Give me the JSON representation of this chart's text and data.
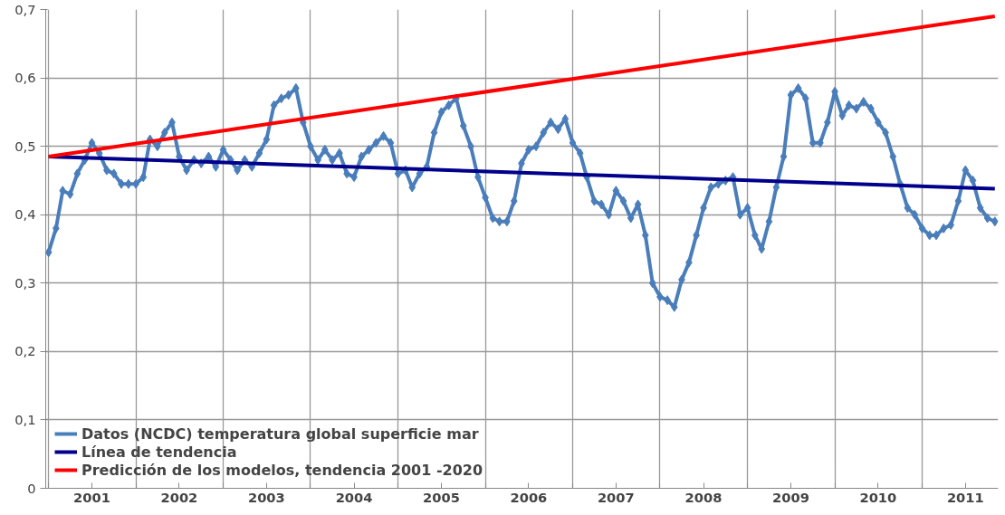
{
  "chart_data": {
    "type": "line",
    "x": [
      "2001-01",
      "2001-02",
      "2001-03",
      "2001-04",
      "2001-05",
      "2001-06",
      "2001-07",
      "2001-08",
      "2001-09",
      "2001-10",
      "2001-11",
      "2001-12",
      "2002-01",
      "2002-02",
      "2002-03",
      "2002-04",
      "2002-05",
      "2002-06",
      "2002-07",
      "2002-08",
      "2002-09",
      "2002-10",
      "2002-11",
      "2002-12",
      "2003-01",
      "2003-02",
      "2003-03",
      "2003-04",
      "2003-05",
      "2003-06",
      "2003-07",
      "2003-08",
      "2003-09",
      "2003-10",
      "2003-11",
      "2003-12",
      "2004-01",
      "2004-02",
      "2004-03",
      "2004-04",
      "2004-05",
      "2004-06",
      "2004-07",
      "2004-08",
      "2004-09",
      "2004-10",
      "2004-11",
      "2004-12",
      "2005-01",
      "2005-02",
      "2005-03",
      "2005-04",
      "2005-05",
      "2005-06",
      "2005-07",
      "2005-08",
      "2005-09",
      "2005-10",
      "2005-11",
      "2005-12",
      "2006-01",
      "2006-02",
      "2006-03",
      "2006-04",
      "2006-05",
      "2006-06",
      "2006-07",
      "2006-08",
      "2006-09",
      "2006-10",
      "2006-11",
      "2006-12",
      "2007-01",
      "2007-02",
      "2007-03",
      "2007-04",
      "2007-05",
      "2007-06",
      "2007-07",
      "2007-08",
      "2007-09",
      "2007-10",
      "2007-11",
      "2007-12",
      "2008-01",
      "2008-02",
      "2008-03",
      "2008-04",
      "2008-05",
      "2008-06",
      "2008-07",
      "2008-08",
      "2008-09",
      "2008-10",
      "2008-11",
      "2008-12",
      "2009-01",
      "2009-02",
      "2009-03",
      "2009-04",
      "2009-05",
      "2009-06",
      "2009-07",
      "2009-08",
      "2009-09",
      "2009-10",
      "2009-11",
      "2009-12",
      "2010-01",
      "2010-02",
      "2010-03",
      "2010-04",
      "2010-05",
      "2010-06",
      "2010-07",
      "2010-08",
      "2010-09",
      "2010-10",
      "2010-11",
      "2010-12",
      "2011-01",
      "2011-02",
      "2011-03",
      "2011-04",
      "2011-05",
      "2011-06",
      "2011-07",
      "2011-08",
      "2011-09",
      "2011-10",
      "2011-11"
    ],
    "series": [
      {
        "name": "Datos (NCDC) temperatura global superficie mar",
        "color": "#4a7ebb",
        "marker": "diamond",
        "values": [
          0.345,
          0.38,
          0.435,
          0.43,
          0.46,
          0.48,
          0.505,
          0.49,
          0.465,
          0.46,
          0.445,
          0.445,
          0.445,
          0.455,
          0.51,
          0.5,
          0.52,
          0.535,
          0.485,
          0.465,
          0.48,
          0.475,
          0.485,
          0.47,
          0.495,
          0.48,
          0.465,
          0.48,
          0.47,
          0.49,
          0.51,
          0.56,
          0.57,
          0.575,
          0.585,
          0.535,
          0.5,
          0.48,
          0.495,
          0.48,
          0.49,
          0.46,
          0.455,
          0.485,
          0.495,
          0.505,
          0.515,
          0.505,
          0.46,
          0.465,
          0.44,
          0.46,
          0.47,
          0.52,
          0.55,
          0.56,
          0.57,
          0.53,
          0.5,
          0.455,
          0.425,
          0.395,
          0.39,
          0.39,
          0.42,
          0.475,
          0.495,
          0.5,
          0.52,
          0.535,
          0.525,
          0.54,
          0.505,
          0.49,
          0.455,
          0.42,
          0.415,
          0.4,
          0.435,
          0.42,
          0.395,
          0.415,
          0.37,
          0.3,
          0.28,
          0.275,
          0.265,
          0.305,
          0.33,
          0.37,
          0.41,
          0.44,
          0.445,
          0.45,
          0.455,
          0.4,
          0.41,
          0.37,
          0.35,
          0.39,
          0.44,
          0.485,
          0.575,
          0.585,
          0.57,
          0.505,
          0.505,
          0.535,
          0.58,
          0.545,
          0.56,
          0.555,
          0.565,
          0.555,
          0.535,
          0.52,
          0.485,
          0.445,
          0.41,
          0.4,
          0.38,
          0.37,
          0.37,
          0.38,
          0.385,
          0.42,
          0.465,
          0.45,
          0.41,
          0.395,
          0.39
        ]
      },
      {
        "name": "Línea de tendencia",
        "color": "#00008b",
        "marker": "none",
        "x": [
          "2001-01",
          "2011-11"
        ],
        "values": [
          0.485,
          0.438
        ]
      },
      {
        "name": "Predicción de los modelos, tendencia 2001 -2020",
        "color": "#ff0000",
        "marker": "none",
        "x": [
          "2001-01",
          "2011-11"
        ],
        "values": [
          0.485,
          0.69
        ]
      }
    ],
    "xlim": [
      "2000-12-20",
      "2011-11-15"
    ],
    "xticks": [
      {
        "value": "2001-01",
        "label": null
      },
      {
        "value": "2001-07",
        "label": "2001"
      },
      {
        "value": "2002-01",
        "label": null
      },
      {
        "value": "2002-07",
        "label": "2002"
      },
      {
        "value": "2003-01",
        "label": null
      },
      {
        "value": "2003-07",
        "label": "2003"
      },
      {
        "value": "2004-01",
        "label": null
      },
      {
        "value": "2004-07",
        "label": "2004"
      },
      {
        "value": "2005-01",
        "label": null
      },
      {
        "value": "2005-07",
        "label": "2005"
      },
      {
        "value": "2006-01",
        "label": null
      },
      {
        "value": "2006-07",
        "label": "2006"
      },
      {
        "value": "2007-01",
        "label": null
      },
      {
        "value": "2007-07",
        "label": "2007"
      },
      {
        "value": "2008-01",
        "label": null
      },
      {
        "value": "2008-07",
        "label": "2008"
      },
      {
        "value": "2009-01",
        "label": null
      },
      {
        "value": "2009-07",
        "label": "2009"
      },
      {
        "value": "2010-01",
        "label": null
      },
      {
        "value": "2010-07",
        "label": "2010"
      },
      {
        "value": "2011-01",
        "label": null
      },
      {
        "value": "2011-07",
        "label": "2011"
      }
    ],
    "ylim": [
      0,
      0.7
    ],
    "yticks": [
      0,
      {
        "value": 0.1,
        "label": "0,1"
      },
      {
        "value": 0.2,
        "label": "0,2"
      },
      {
        "value": 0.3,
        "label": "0,3"
      },
      {
        "value": 0.4,
        "label": "0,4"
      },
      {
        "value": 0.5,
        "label": "0,5"
      },
      {
        "value": 0.6,
        "label": "0,6"
      },
      {
        "value": 0.7,
        "label": "0,7"
      }
    ],
    "grid": true,
    "legend": "bottom left",
    "line_style": "solid"
  }
}
